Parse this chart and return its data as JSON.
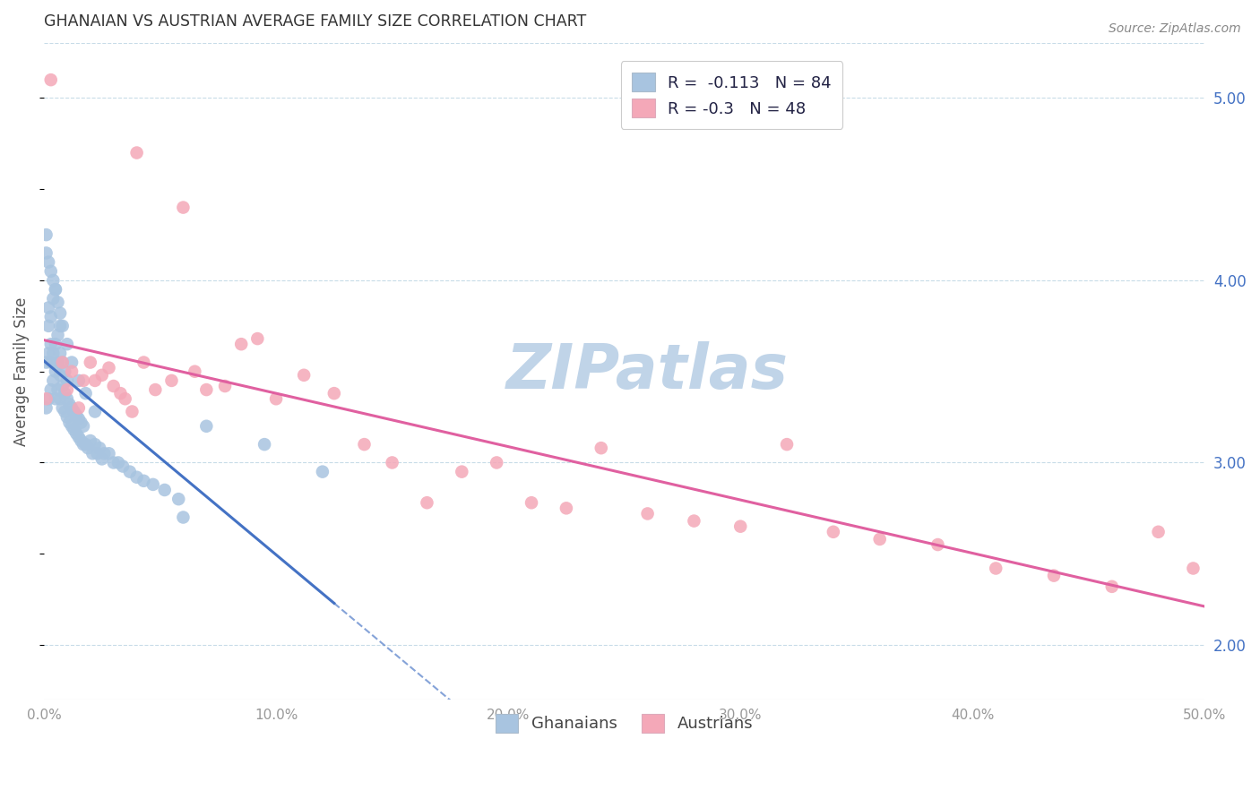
{
  "title": "GHANAIAN VS AUSTRIAN AVERAGE FAMILY SIZE CORRELATION CHART",
  "source": "Source: ZipAtlas.com",
  "ylabel": "Average Family Size",
  "xlim": [
    0.0,
    0.5
  ],
  "ylim": [
    1.7,
    5.3
  ],
  "yticks_right": [
    2.0,
    3.0,
    4.0,
    5.0
  ],
  "xticks": [
    0.0,
    0.1,
    0.2,
    0.3,
    0.4,
    0.5
  ],
  "xtick_labels": [
    "0.0%",
    "10.0%",
    "20.0%",
    "30.0%",
    "40.0%",
    "50.0%"
  ],
  "ghanaian_color": "#a8c4e0",
  "austrian_color": "#f4a8b8",
  "ghanaian_edge_color": "#7aadd0",
  "austrian_edge_color": "#e888a8",
  "ghanaian_line_color": "#4472c4",
  "austrian_line_color": "#e060a0",
  "r_ghanaian": -0.113,
  "n_ghanaian": 84,
  "r_austrian": -0.3,
  "n_austrian": 48,
  "watermark": "ZIPatlas",
  "watermark_color": "#c0d4e8",
  "legend_label_1": "Ghanaians",
  "legend_label_2": "Austrians",
  "ghanaian_x": [
    0.001,
    0.001,
    0.002,
    0.002,
    0.002,
    0.002,
    0.003,
    0.003,
    0.003,
    0.003,
    0.004,
    0.004,
    0.004,
    0.005,
    0.005,
    0.005,
    0.005,
    0.006,
    0.006,
    0.006,
    0.007,
    0.007,
    0.007,
    0.007,
    0.008,
    0.008,
    0.008,
    0.009,
    0.009,
    0.009,
    0.01,
    0.01,
    0.01,
    0.011,
    0.011,
    0.012,
    0.012,
    0.013,
    0.013,
    0.014,
    0.014,
    0.015,
    0.015,
    0.016,
    0.016,
    0.017,
    0.017,
    0.018,
    0.019,
    0.02,
    0.021,
    0.022,
    0.023,
    0.024,
    0.025,
    0.026,
    0.028,
    0.03,
    0.032,
    0.034,
    0.037,
    0.04,
    0.043,
    0.047,
    0.052,
    0.058,
    0.001,
    0.001,
    0.002,
    0.003,
    0.004,
    0.005,
    0.006,
    0.007,
    0.008,
    0.01,
    0.012,
    0.015,
    0.018,
    0.022,
    0.06,
    0.07,
    0.095,
    0.12
  ],
  "ghanaian_y": [
    3.3,
    3.55,
    3.35,
    3.6,
    3.75,
    3.85,
    3.4,
    3.55,
    3.65,
    3.8,
    3.45,
    3.6,
    3.9,
    3.35,
    3.5,
    3.65,
    3.95,
    3.4,
    3.55,
    3.7,
    3.35,
    3.48,
    3.6,
    3.75,
    3.3,
    3.42,
    3.55,
    3.28,
    3.38,
    3.5,
    3.25,
    3.35,
    3.45,
    3.22,
    3.32,
    3.2,
    3.3,
    3.18,
    3.28,
    3.16,
    3.26,
    3.14,
    3.24,
    3.12,
    3.22,
    3.1,
    3.2,
    3.1,
    3.08,
    3.12,
    3.05,
    3.1,
    3.05,
    3.08,
    3.02,
    3.05,
    3.05,
    3.0,
    3.0,
    2.98,
    2.95,
    2.92,
    2.9,
    2.88,
    2.85,
    2.8,
    4.15,
    4.25,
    4.1,
    4.05,
    4.0,
    3.95,
    3.88,
    3.82,
    3.75,
    3.65,
    3.55,
    3.45,
    3.38,
    3.28,
    2.7,
    3.2,
    3.1,
    2.95
  ],
  "austrian_x": [
    0.001,
    0.003,
    0.008,
    0.01,
    0.012,
    0.015,
    0.017,
    0.02,
    0.022,
    0.025,
    0.028,
    0.03,
    0.033,
    0.035,
    0.038,
    0.04,
    0.043,
    0.048,
    0.055,
    0.06,
    0.065,
    0.07,
    0.078,
    0.085,
    0.092,
    0.1,
    0.112,
    0.125,
    0.138,
    0.15,
    0.165,
    0.18,
    0.195,
    0.21,
    0.225,
    0.24,
    0.26,
    0.28,
    0.3,
    0.32,
    0.34,
    0.36,
    0.385,
    0.41,
    0.435,
    0.46,
    0.48,
    0.495
  ],
  "austrian_y": [
    3.35,
    5.1,
    3.55,
    3.4,
    3.5,
    3.3,
    3.45,
    3.55,
    3.45,
    3.48,
    3.52,
    3.42,
    3.38,
    3.35,
    3.28,
    4.7,
    3.55,
    3.4,
    3.45,
    4.4,
    3.5,
    3.4,
    3.42,
    3.65,
    3.68,
    3.35,
    3.48,
    3.38,
    3.1,
    3.0,
    2.78,
    2.95,
    3.0,
    2.78,
    2.75,
    3.08,
    2.72,
    2.68,
    2.65,
    3.1,
    2.62,
    2.58,
    2.55,
    2.42,
    2.38,
    2.32,
    2.62,
    2.42
  ]
}
